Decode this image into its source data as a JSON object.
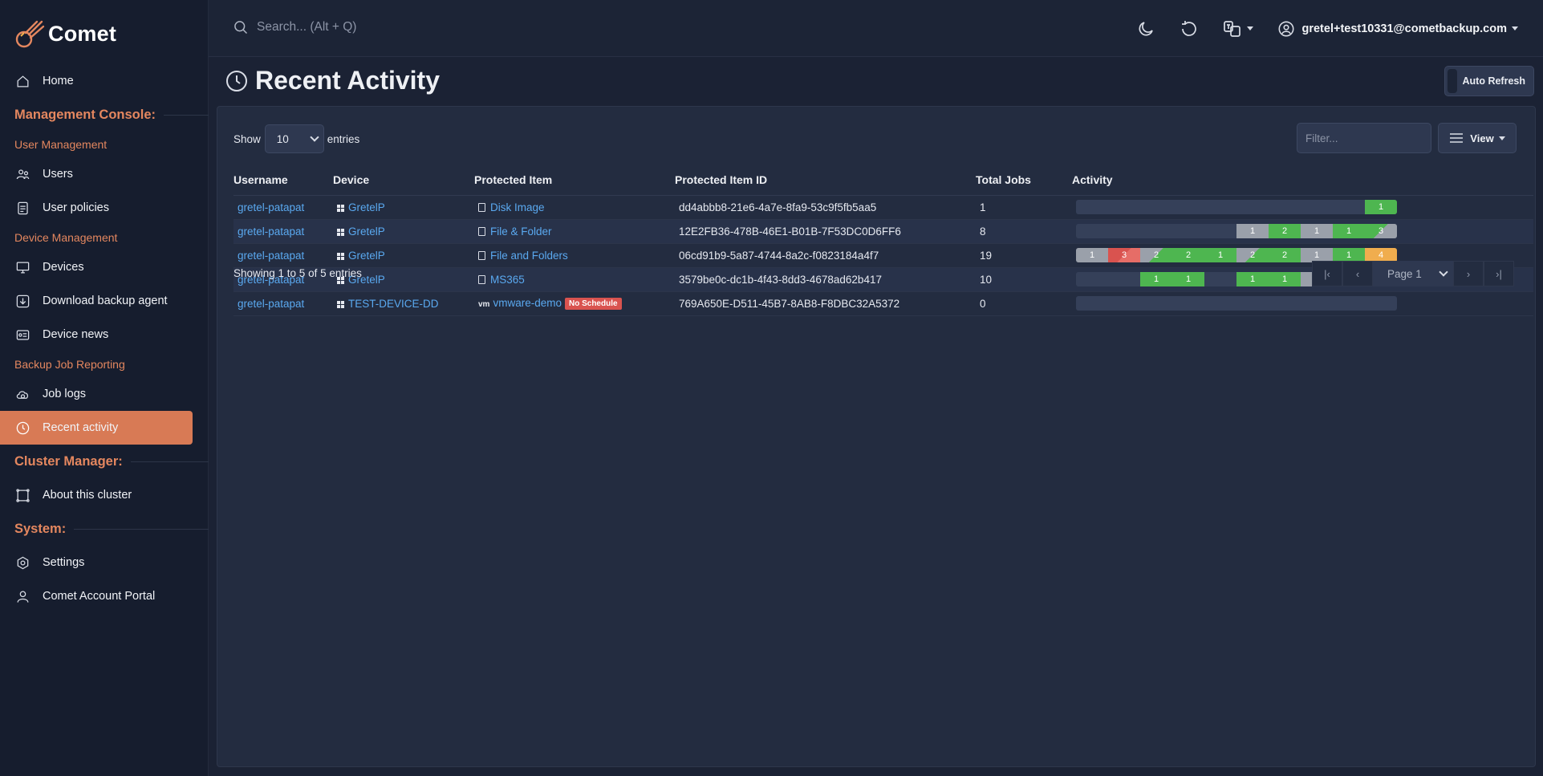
{
  "brand": {
    "name": "Comet"
  },
  "search": {
    "placeholder": "Search... (Alt + Q)"
  },
  "user": {
    "email": "gretel+test10331@cometbackup.com"
  },
  "sidebar": {
    "home": "Home",
    "management_console": "Management Console:",
    "user_management": "User Management",
    "users": "Users",
    "user_policies": "User policies",
    "device_management": "Device Management",
    "devices": "Devices",
    "download_agent": "Download backup agent",
    "device_news": "Device news",
    "backup_job_reporting": "Backup Job Reporting",
    "job_logs": "Job logs",
    "recent_activity": "Recent activity",
    "cluster_manager": "Cluster Manager:",
    "about_cluster": "About this cluster",
    "system": "System:",
    "settings": "Settings",
    "account_portal": "Comet Account Portal"
  },
  "page": {
    "title": "Recent Activity",
    "auto_refresh": "Auto Refresh"
  },
  "controls": {
    "show": "Show",
    "entries_value": "10",
    "entries": "entries",
    "filter_placeholder": "Filter...",
    "view": "View"
  },
  "table": {
    "headers": [
      "Username",
      "Device",
      "Protected Item",
      "Protected Item ID",
      "Total Jobs",
      "Activity"
    ],
    "rows": [
      {
        "username": "gretel-patapat",
        "device": "GretelP",
        "item": "Disk Image",
        "item_id": "dd4abbb8-21e6-4a7e-8fa9-53c9f5fb5aa5",
        "jobs": "1",
        "badge": "",
        "activity": [
          {
            "slot": 9,
            "label": "1",
            "status": "success"
          }
        ]
      },
      {
        "username": "gretel-patapat",
        "device": "GretelP",
        "item": "File & Folder",
        "item_id": "12E2FB36-478B-46E1-B01B-7F53DC0D6FF6",
        "jobs": "8",
        "badge": "",
        "activity": [
          {
            "slot": 5,
            "label": "1",
            "status": "skipped"
          },
          {
            "slot": 6,
            "label": "2",
            "status": "success"
          },
          {
            "slot": 7,
            "label": "1",
            "status": "skipped"
          },
          {
            "slot": 8,
            "label": "1",
            "status": "success"
          },
          {
            "slot": 9,
            "label": "3",
            "status": "mixed-grey-green"
          }
        ]
      },
      {
        "username": "gretel-patapat",
        "device": "GretelP",
        "item": "File and Folders",
        "item_id": "06cd91b9-5a87-4744-8a2c-f0823184a4f7",
        "jobs": "19",
        "badge": "",
        "activity": [
          {
            "slot": 0,
            "label": "1",
            "status": "skipped"
          },
          {
            "slot": 1,
            "label": "3",
            "status": "mixed-err"
          },
          {
            "slot": 2,
            "label": "2",
            "status": "mixed-ok"
          },
          {
            "slot": 3,
            "label": "2",
            "status": "success"
          },
          {
            "slot": 4,
            "label": "1",
            "status": "success"
          },
          {
            "slot": 5,
            "label": "2",
            "status": "mixed-ok"
          },
          {
            "slot": 6,
            "label": "2",
            "status": "success"
          },
          {
            "slot": 7,
            "label": "1",
            "status": "skipped"
          },
          {
            "slot": 8,
            "label": "1",
            "status": "success"
          },
          {
            "slot": 9,
            "label": "4",
            "status": "warning"
          }
        ]
      },
      {
        "username": "gretel-patapat",
        "device": "GretelP",
        "item": "MS365",
        "item_id": "3579be0c-dc1b-4f43-8dd3-4678ad62b417",
        "jobs": "10",
        "badge": "",
        "activity": [
          {
            "slot": 2,
            "label": "1",
            "status": "success"
          },
          {
            "slot": 3,
            "label": "1",
            "status": "success"
          },
          {
            "slot": 5,
            "label": "1",
            "status": "success"
          },
          {
            "slot": 6,
            "label": "1",
            "status": "success"
          },
          {
            "slot": 7,
            "label": "1",
            "status": "skipped"
          },
          {
            "slot": 8,
            "label": "3",
            "status": "mixed-ok"
          },
          {
            "slot": 9,
            "label": "2",
            "status": "mixed-ok"
          }
        ]
      },
      {
        "username": "gretel-patapat",
        "device": "TEST-DEVICE-DD",
        "item": "vmware-demo",
        "item_id": "769A650E-D511-45B7-8AB8-F8DBC32A5372",
        "jobs": "0",
        "badge": "No Schedule",
        "activity": []
      }
    ]
  },
  "footer": {
    "showing": "Showing 1 to 5 of 5 entries",
    "page": "Page 1"
  },
  "colors": {
    "accent": "#d87a55",
    "link": "#5aa9f0",
    "success": "#4eb650",
    "error": "#d9534f",
    "warning": "#f0ad4e",
    "skipped": "#9aa0aa"
  }
}
